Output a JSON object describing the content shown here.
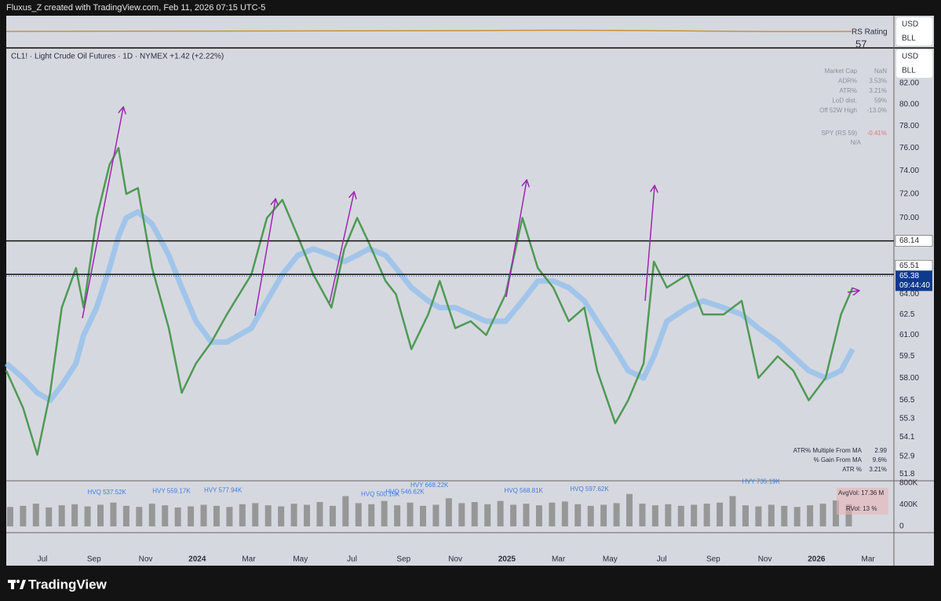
{
  "header": "Fluxus_Z created with TradingView.com, Feb 11, 2026 07:15 UTC-5",
  "rs_pane": {
    "currency": "USD",
    "unit": "BLL",
    "label": "RS Rating",
    "value": "57"
  },
  "main_pane": {
    "currency": "USD",
    "unit": "BLL"
  },
  "footer": "TradingView",
  "chart_data": [
    {
      "type": "line",
      "title": "CL1! · Light Crude Oil Futures · 1D · NYMEX  +1.42 (+2.22%)",
      "log": true,
      "grid": false,
      "x": [
        -1.4,
        -0.75,
        -0.2,
        0.3,
        0.75,
        1.3,
        1.6,
        2.1,
        2.6,
        2.95,
        3.25,
        3.7,
        4.25,
        4.9,
        5.4,
        5.95,
        6.55,
        7.15,
        8.1,
        8.7,
        9.3,
        9.9,
        10.5,
        11.2,
        11.7,
        12.2,
        12.65,
        13.3,
        13.7,
        14.3,
        14.95,
        15.4,
        16.0,
        16.6,
        17.2,
        17.95,
        18.6,
        19.2,
        19.8,
        20.4,
        21.0,
        21.5,
        22.2,
        22.7,
        23.3,
        23.7,
        24.2,
        25.0,
        25.6,
        26.4,
        27.1,
        27.75,
        28.5,
        29.1,
        29.7,
        30.35,
        30.95,
        31.4
      ],
      "series": [
        {
          "color": "#4e9a55",
          "values": [
            58.5,
            56,
            53,
            57,
            63,
            66,
            63,
            70,
            74.5,
            76,
            72,
            72.5,
            66,
            61.5,
            57,
            59,
            60.5,
            62.5,
            65.5,
            70,
            71.5,
            68.5,
            65.5,
            63,
            67.5,
            70,
            68,
            65,
            64,
            60,
            62.5,
            65,
            61.5,
            62,
            61,
            64,
            70,
            66,
            64.5,
            62,
            63,
            58.5,
            55,
            56.5,
            59,
            66.5,
            64.5,
            65.5,
            62.5,
            62.5,
            63.5,
            58,
            59.5,
            58.5,
            56.5,
            58,
            62.5,
            64.5
          ]
        },
        {
          "color": "#8fbfee",
          "values": [
            59,
            58,
            57,
            56.5,
            57.5,
            59,
            61,
            63,
            66,
            68.5,
            70,
            70.5,
            69.5,
            67,
            64.5,
            62,
            60.5,
            60.5,
            61.5,
            63.5,
            65.5,
            67,
            67.5,
            67,
            66.5,
            67,
            67.5,
            67,
            66,
            64.5,
            63.5,
            63,
            63,
            62.5,
            62,
            62,
            63.5,
            65,
            65,
            64.5,
            63.5,
            62,
            60,
            58.5,
            58,
            59.5,
            62,
            63,
            63.5,
            63,
            62.5,
            61.5,
            60.5,
            59.5,
            58.5,
            58,
            58.5,
            60
          ]
        }
      ],
      "xlim": [
        -1.4,
        33.0
      ],
      "xticks": [
        {
          "value": 0,
          "label": "Jul"
        },
        {
          "value": 2,
          "label": "Sep"
        },
        {
          "value": 4,
          "label": "Nov"
        },
        {
          "value": 6,
          "label": "2024"
        },
        {
          "value": 8,
          "label": "Mar"
        },
        {
          "value": 10,
          "label": "May"
        },
        {
          "value": 12,
          "label": "Jul"
        },
        {
          "value": 14,
          "label": "Sep"
        },
        {
          "value": 16,
          "label": "Nov"
        },
        {
          "value": 18,
          "label": "2025"
        },
        {
          "value": 20,
          "label": "Mar"
        },
        {
          "value": 22,
          "label": "May"
        },
        {
          "value": 24,
          "label": "Jul"
        },
        {
          "value": 26,
          "label": "Sep"
        },
        {
          "value": 28,
          "label": "Nov"
        },
        {
          "value": 30,
          "label": "2026"
        },
        {
          "value": 32,
          "label": "Mar"
        }
      ],
      "ylim": [
        51.4,
        85.4
      ],
      "yticks": [
        {
          "value": 82,
          "label": "82.00"
        },
        {
          "value": 80,
          "label": "80.00"
        },
        {
          "value": 78,
          "label": "78.00"
        },
        {
          "value": 76,
          "label": "76.00"
        },
        {
          "value": 74,
          "label": "74.00"
        },
        {
          "value": 72,
          "label": "72.00"
        },
        {
          "value": 70,
          "label": "70.00"
        },
        {
          "value": 64,
          "label": "64.00"
        },
        62.5,
        {
          "value": 61,
          "label": "61.00"
        },
        59.5,
        {
          "value": 58,
          "label": "58.00"
        },
        56.5,
        55.3,
        54.1,
        52.9,
        51.8
      ],
      "price_lines": [
        68.14,
        65.51
      ],
      "last_price": 65.38,
      "countdown": "09:44:40",
      "stats_table": [
        [
          "Market Cap",
          "NaN"
        ],
        [
          "ADR%",
          "3.53%"
        ],
        [
          "ATR%",
          "3.21%"
        ],
        [
          "LoD dist.",
          "59%"
        ],
        [
          "Off 52W High",
          "-13.0%"
        ]
      ],
      "spy": [
        "SPY (RS 59)",
        "-0.41%"
      ],
      "spy_note": "N/A",
      "ma_stats": [
        [
          "ATR% Multiple From MA",
          "2.99"
        ],
        [
          "% Gain From MA",
          "9.6%"
        ],
        [
          "ATR %",
          "3.21%"
        ]
      ]
    },
    {
      "type": "bar",
      "color": "#8c8c8c",
      "x": [
        -1.25,
        -0.75,
        -0.25,
        0.25,
        0.75,
        1.25,
        1.75,
        2.25,
        2.75,
        3.25,
        3.75,
        4.25,
        4.75,
        5.25,
        5.75,
        6.25,
        6.75,
        7.25,
        7.75,
        8.25,
        8.75,
        9.25,
        9.75,
        10.25,
        10.75,
        11.25,
        11.75,
        12.25,
        12.75,
        13.25,
        13.75,
        14.25,
        14.75,
        15.25,
        15.75,
        16.25,
        16.75,
        17.25,
        17.75,
        18.25,
        18.75,
        19.25,
        19.75,
        20.25,
        20.75,
        21.25,
        21.75,
        22.25,
        22.75,
        23.25,
        23.75,
        24.25,
        24.75,
        25.25,
        25.75,
        26.25,
        26.75,
        27.25,
        27.75,
        28.25,
        28.75,
        29.25,
        29.75,
        30.25,
        30.75,
        31.25
      ],
      "values": [
        360000,
        380000,
        420000,
        350000,
        390000,
        410000,
        370000,
        400000,
        440000,
        380000,
        360000,
        420000,
        390000,
        350000,
        370000,
        400000,
        380000,
        360000,
        410000,
        430000,
        390000,
        370000,
        420000,
        400000,
        450000,
        380000,
        560000,
        430000,
        410000,
        470000,
        390000,
        440000,
        380000,
        400000,
        520000,
        430000,
        450000,
        410000,
        470000,
        400000,
        420000,
        390000,
        440000,
        460000,
        410000,
        380000,
        400000,
        430000,
        600000,
        420000,
        390000,
        410000,
        380000,
        400000,
        420000,
        440000,
        560000,
        390000,
        370000,
        400000,
        380000,
        360000,
        390000,
        420000,
        480000,
        410000
      ],
      "ylim": [
        -116000,
        843000
      ],
      "yticks": [
        {
          "value": 800000,
          "label": "800K"
        },
        {
          "value": 400000,
          "label": "400K"
        },
        0
      ],
      "annotations": [
        {
          "text": "HVQ 537.52K",
          "x": 2.5,
          "value": 537520
        },
        {
          "text": "HVY 559.17K",
          "x": 5.0,
          "value": 559170
        },
        {
          "text": "HVY 577.94K",
          "x": 7.0,
          "value": 577940
        },
        {
          "text": "HVQ 500.15K",
          "x": 13.1,
          "value": 500150
        },
        {
          "text": "HVQ 546.62K",
          "x": 14.05,
          "value": 546620
        },
        {
          "text": "HVY 668.22K",
          "x": 15.0,
          "value": 668220
        },
        {
          "text": "HVQ 568.81K",
          "x": 18.65,
          "value": 568810
        },
        {
          "text": "HVQ 597.62K",
          "x": 21.2,
          "value": 597620
        },
        {
          "text": "HVY 735.19K",
          "x": 27.85,
          "value": 735190
        }
      ],
      "avg_volume": "AvgVol: 17.36 M",
      "rvol": "RVol: 13 %"
    }
  ]
}
